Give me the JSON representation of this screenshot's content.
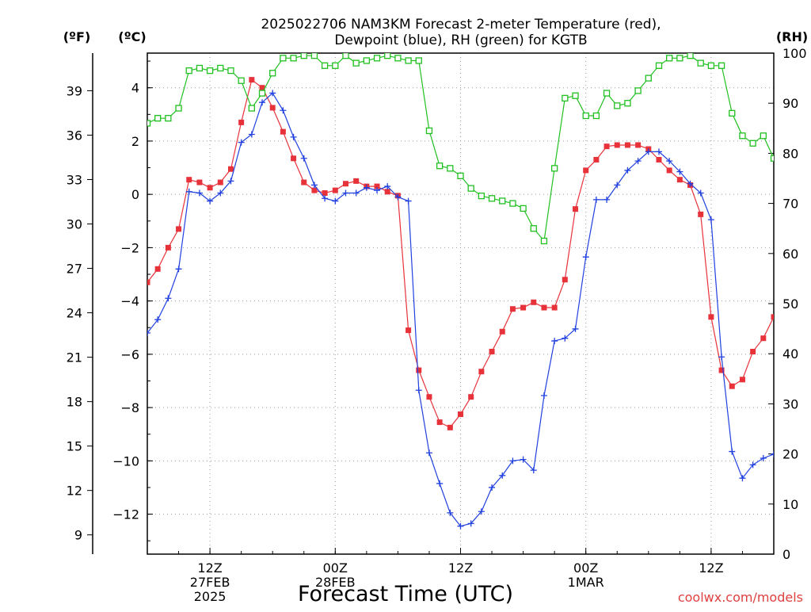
{
  "title_line1": "2025022706 NAM3KM Forecast 2-meter Temperature (red),",
  "title_line2": "Dewpoint (blue), RH (green) for KGTB",
  "units": {
    "fahrenheit": "(ºF)",
    "celsius": "(ºC)",
    "rh": "(RH)"
  },
  "xlabel": "Forecast Time (UTC)",
  "credit": "coolwx.com/models",
  "colors": {
    "temperature": "#e8323a",
    "dewpoint": "#2040e0",
    "rh": "#20c020"
  },
  "chart_data": {
    "type": "line",
    "x_unit": "forecast hour from 2025-02-27 06Z",
    "x_range": [
      0,
      60
    ],
    "x_ticks": [
      {
        "hour": 6,
        "label": "12Z",
        "label2": "27FEB",
        "label3": "2025"
      },
      {
        "hour": 18,
        "label": "00Z",
        "label2": "28FEB",
        "label3": ""
      },
      {
        "hour": 30,
        "label": "12Z",
        "label2": "",
        "label3": ""
      },
      {
        "hour": 42,
        "label": "00Z",
        "label2": "1MAR",
        "label3": ""
      },
      {
        "hour": 54,
        "label": "12Z",
        "label2": "",
        "label3": ""
      }
    ],
    "y_celsius_range": [
      -13.5,
      5.3
    ],
    "y_celsius_ticks": [
      "4",
      "2",
      "0",
      "−2",
      "−4",
      "−6",
      "−8",
      "−10",
      "−12"
    ],
    "y_fahrenheit_ticks": [
      "39",
      "36",
      "33",
      "30",
      "27",
      "24",
      "21",
      "18",
      "15",
      "12",
      "9"
    ],
    "y_rh_range": [
      0,
      100
    ],
    "y_rh_ticks": [
      "100",
      "90",
      "80",
      "70",
      "60",
      "50",
      "40",
      "30",
      "20",
      "10",
      "0"
    ],
    "grid": true,
    "series": [
      {
        "name": "Temperature",
        "unit": "°C",
        "x": [
          0,
          1,
          2,
          3,
          4,
          5,
          6,
          7,
          8,
          9,
          10,
          11,
          12,
          13,
          14,
          15,
          16,
          17,
          18,
          19,
          20,
          21,
          22,
          23,
          24,
          25,
          26,
          27,
          28,
          29,
          30,
          31,
          32,
          33,
          34,
          35,
          36,
          37,
          38,
          39,
          40,
          41,
          42,
          43,
          44,
          45,
          46,
          47,
          48,
          49,
          50,
          51,
          52,
          53,
          54,
          55,
          56,
          57,
          58,
          59,
          60
        ],
        "values": [
          -3.3,
          -2.8,
          -2.0,
          -1.3,
          0.55,
          0.45,
          0.25,
          0.45,
          0.95,
          2.7,
          4.3,
          4.0,
          3.25,
          2.35,
          1.35,
          0.45,
          0.15,
          0.05,
          0.15,
          0.4,
          0.5,
          0.3,
          0.3,
          0.1,
          -0.05,
          -5.1,
          -6.6,
          -7.6,
          -8.55,
          -8.75,
          -8.25,
          -7.6,
          -6.65,
          -5.9,
          -5.15,
          -4.3,
          -4.25,
          -4.05,
          -4.25,
          -4.25,
          -3.2,
          -0.55,
          0.9,
          1.3,
          1.8,
          1.85,
          1.85,
          1.85,
          1.7,
          1.3,
          0.9,
          0.55,
          0.35,
          -0.75,
          -4.6,
          -6.6,
          -7.2,
          -6.95,
          -5.9,
          -5.4,
          -4.6
        ]
      },
      {
        "name": "Dewpoint",
        "unit": "°C",
        "x": [
          0,
          1,
          2,
          3,
          4,
          5,
          6,
          7,
          8,
          9,
          10,
          11,
          12,
          13,
          14,
          15,
          16,
          17,
          18,
          19,
          20,
          21,
          22,
          23,
          24,
          25,
          26,
          27,
          28,
          29,
          30,
          31,
          32,
          33,
          34,
          35,
          36,
          37,
          38,
          39,
          40,
          41,
          42,
          43,
          44,
          45,
          46,
          47,
          48,
          49,
          50,
          51,
          52,
          53,
          54,
          55,
          56,
          57,
          58,
          59,
          60
        ],
        "values": [
          -5.2,
          -4.7,
          -3.9,
          -2.8,
          0.1,
          0.05,
          -0.25,
          0.05,
          0.5,
          1.95,
          2.25,
          3.45,
          3.8,
          3.15,
          2.15,
          1.35,
          0.35,
          -0.15,
          -0.25,
          0.05,
          0.05,
          0.25,
          0.15,
          0.3,
          -0.1,
          -0.25,
          -7.35,
          -9.7,
          -10.85,
          -11.95,
          -12.45,
          -12.35,
          -11.9,
          -11.0,
          -10.55,
          -10.0,
          -9.95,
          -10.35,
          -7.55,
          -5.5,
          -5.4,
          -5.05,
          -2.35,
          -0.2,
          -0.2,
          0.35,
          0.9,
          1.25,
          1.6,
          1.6,
          1.25,
          0.85,
          0.4,
          0.05,
          -0.95,
          -6.1,
          -9.65,
          -10.65,
          -10.15,
          -9.9,
          -9.75
        ]
      },
      {
        "name": "RH",
        "unit": "%",
        "x": [
          0,
          1,
          2,
          3,
          4,
          5,
          6,
          7,
          8,
          9,
          10,
          11,
          12,
          13,
          14,
          15,
          16,
          17,
          18,
          19,
          20,
          21,
          22,
          23,
          24,
          25,
          26,
          27,
          28,
          29,
          30,
          31,
          32,
          33,
          34,
          35,
          36,
          37,
          38,
          39,
          40,
          41,
          42,
          43,
          44,
          45,
          46,
          47,
          48,
          49,
          50,
          51,
          52,
          53,
          54,
          55,
          56,
          57,
          58,
          59,
          60
        ],
        "values": [
          86,
          87,
          87,
          89,
          96.5,
          97,
          96.5,
          97,
          96.5,
          94.5,
          89,
          92,
          96,
          99,
          99,
          99.5,
          99.5,
          97.5,
          97.5,
          99.5,
          98,
          98.5,
          99,
          99.5,
          99,
          98.5,
          98.5,
          84.5,
          77.5,
          77,
          75.5,
          73,
          71.5,
          71,
          70.5,
          70,
          69,
          65,
          62.5,
          77,
          91,
          91.5,
          87.5,
          87.5,
          92,
          89.5,
          90,
          92.5,
          95,
          97.5,
          99,
          99,
          99.5,
          98,
          97.5,
          97.5,
          88,
          83.5,
          82,
          83.5,
          79
        ]
      }
    ]
  }
}
